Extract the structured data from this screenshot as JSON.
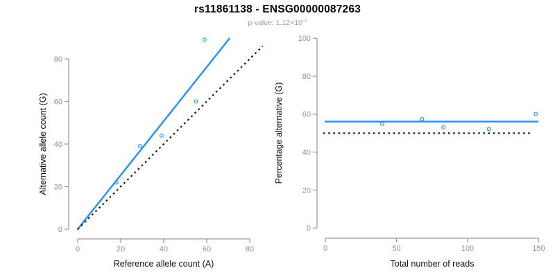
{
  "title": "rs11861138 - ENSG00000087263",
  "subtitle": {
    "text": "p-value: 1.12×10",
    "exponent": "-2"
  },
  "colors": {
    "accent_blue": "#1E90FF",
    "axis_gray": "#979797",
    "tick_label_gray": "#919191",
    "label_black": "#111111",
    "dotted_black": "#141414",
    "background": "#ffffff"
  },
  "chart_data": [
    {
      "type": "scatter",
      "panel": "left",
      "xlabel": "Reference allele count (A)",
      "ylabel": "Alternative allele count (G)",
      "xlim": [
        0,
        86
      ],
      "ylim": [
        0,
        90
      ],
      "xticks": [
        0,
        20,
        40,
        60,
        80
      ],
      "yticks": [
        0,
        20,
        40,
        60,
        80
      ],
      "grid": false,
      "legend": null,
      "points": [
        {
          "x": 18,
          "y": 22
        },
        {
          "x": 29,
          "y": 39
        },
        {
          "x": 39,
          "y": 44
        },
        {
          "x": 55,
          "y": 60
        },
        {
          "x": 59,
          "y": 89
        }
      ],
      "lines": [
        {
          "name": "regression-fit-line",
          "style": "solid",
          "color": "#1E90FF",
          "x1": 0,
          "y1": 0,
          "x2": 70.5,
          "y2": 89.5
        },
        {
          "name": "identity-diagonal-line",
          "style": "dotted",
          "color": "#141414",
          "x1": 0,
          "y1": 0,
          "x2": 86,
          "y2": 86
        }
      ]
    },
    {
      "type": "scatter",
      "panel": "right",
      "xlabel": "Total number of reads",
      "ylabel": "Percentage alternative (G)",
      "xlim": [
        0,
        150
      ],
      "ylim": [
        0,
        100
      ],
      "xticks": [
        0,
        50,
        100,
        150
      ],
      "yticks": [
        0,
        20,
        40,
        60,
        80,
        100
      ],
      "grid": false,
      "legend": null,
      "points": [
        {
          "x": 40,
          "y": 55.0
        },
        {
          "x": 68,
          "y": 57.4
        },
        {
          "x": 83,
          "y": 53.0
        },
        {
          "x": 115,
          "y": 52.2
        },
        {
          "x": 148,
          "y": 60.1
        }
      ],
      "lines": [
        {
          "name": "mean-percentage-line",
          "style": "solid",
          "color": "#1E90FF",
          "x1": 0,
          "y1": 56.1,
          "x2": 149.3,
          "y2": 56.1
        },
        {
          "name": "fifty-percent-reference-line",
          "style": "dotted",
          "color": "#141414",
          "x1": -1.5,
          "y1": 50,
          "x2": 146,
          "y2": 50
        }
      ]
    }
  ]
}
